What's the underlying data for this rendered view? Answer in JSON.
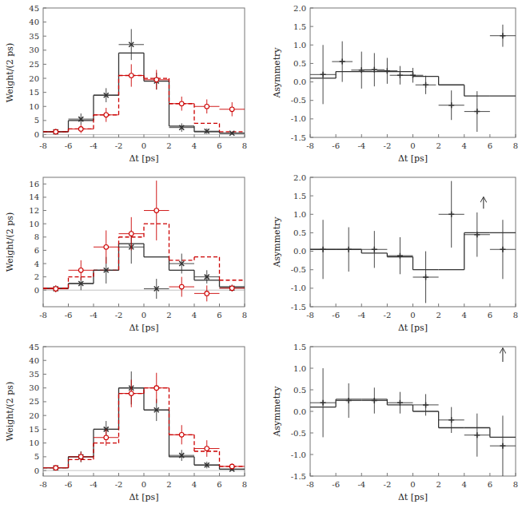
{
  "chart_data": [
    {
      "type": "step",
      "bins": [
        -8,
        -6,
        -4,
        -2,
        0,
        2,
        4,
        6,
        8
      ],
      "x_label": "Δt [ps]",
      "y_label": "Weight/(2 ps)",
      "xlim": [
        -8,
        8
      ],
      "xticks": [
        -8,
        -6,
        -4,
        -2,
        0,
        2,
        4,
        6,
        8
      ],
      "ylim": [
        -1,
        45
      ],
      "yticks": [
        0,
        5,
        10,
        15,
        20,
        25,
        30,
        35,
        40,
        45
      ],
      "annotations": [
        {
          "type": "hline",
          "y": 0
        }
      ],
      "series": [
        {
          "type": "step",
          "color": "#333333",
          "line_style": "solid",
          "values": [
            1.0,
            5.0,
            14.0,
            29.0,
            19.0,
            3.0,
            1.0,
            0.5
          ]
        },
        {
          "type": "step",
          "color": "#cc0000",
          "line_style": "dashed",
          "values": [
            1.0,
            2.0,
            7.0,
            21.0,
            20.0,
            11.0,
            4.0,
            1.0
          ]
        },
        {
          "type": "errorbar",
          "color": "#333333",
          "marker": "x",
          "x": [
            -7,
            -5,
            -3,
            -1,
            1,
            3,
            5,
            7
          ],
          "values": [
            1.0,
            5.5,
            14.0,
            32.0,
            19.0,
            2.5,
            1.2,
            0.5
          ],
          "errors": [
            1.0,
            2.0,
            2.5,
            5.5,
            3.0,
            1.5,
            1.0,
            0.5
          ],
          "x_error": 1.0
        },
        {
          "type": "errorbar",
          "color": "#cc0000",
          "marker": "o",
          "x": [
            -7,
            -5,
            -3,
            -1,
            1,
            3,
            5,
            7
          ],
          "values": [
            1.0,
            2.0,
            7.0,
            21.0,
            19.5,
            11.0,
            10.0,
            9.0
          ],
          "errors": [
            0.8,
            1.5,
            2.5,
            4.0,
            3.5,
            2.5,
            2.5,
            2.5
          ],
          "x_error": 1.0
        }
      ]
    },
    {
      "type": "step",
      "bins": [
        -8,
        -6,
        -4,
        -2,
        0,
        2,
        4,
        6,
        8
      ],
      "x_label": "Δt [ps]",
      "y_label": "Asymmetry",
      "xlim": [
        -8,
        8
      ],
      "xticks": [
        -8,
        -6,
        -4,
        -2,
        0,
        2,
        4,
        6,
        8
      ],
      "ylim": [
        -1.5,
        2.0
      ],
      "yticks": [
        {
          "value": -1.5,
          "label": "-1.5"
        },
        {
          "value": -1.0,
          "label": "-1.0"
        },
        {
          "value": -0.5,
          "label": "-0.5"
        },
        {
          "value": 0.0,
          "label": "0.0"
        },
        {
          "value": 0.5,
          "label": "0.5"
        },
        {
          "value": 1.0,
          "label": "1.0"
        },
        {
          "value": 1.5,
          "label": "1.5"
        },
        {
          "value": 2.0,
          "label": "2.0"
        }
      ],
      "series": [
        {
          "type": "step",
          "color": "#333333",
          "line_style": "solid",
          "values": [
            0.1,
            0.28,
            0.28,
            0.28,
            0.15,
            -0.08,
            -0.38,
            -0.38
          ]
        },
        {
          "type": "errorbar",
          "color": "#333333",
          "marker": "+",
          "x": [
            -7.0,
            -5.5,
            -4.0,
            -3.0,
            -2.0,
            -1.0,
            0.0,
            1.0,
            3.0,
            5.0,
            7.0
          ],
          "values": [
            0.2,
            0.55,
            0.32,
            0.33,
            0.3,
            0.18,
            0.18,
            -0.08,
            -0.63,
            -0.8,
            1.25
          ],
          "errors": [
            0.8,
            0.55,
            0.5,
            0.45,
            0.35,
            0.25,
            0.2,
            0.25,
            0.4,
            0.55,
            0.3
          ],
          "x_errors": [
            1.0,
            0.8,
            0.8,
            0.8,
            0.8,
            0.8,
            0.8,
            0.8,
            1.0,
            1.0,
            1.0
          ]
        }
      ]
    },
    {
      "type": "step",
      "bins": [
        -8,
        -6,
        -4,
        -2,
        0,
        2,
        4,
        6,
        8
      ],
      "x_label": "Δt [ps]",
      "y_label": "Weight/(2 ps)",
      "xlim": [
        -8,
        8
      ],
      "xticks": [
        -8,
        -6,
        -4,
        -2,
        0,
        2,
        4,
        6,
        8
      ],
      "ylim": [
        -2.5,
        17
      ],
      "yticks": [
        0,
        2,
        4,
        6,
        8,
        10,
        12,
        14,
        16
      ],
      "annotations": [
        {
          "type": "hline",
          "y": 0
        }
      ],
      "series": [
        {
          "type": "step",
          "color": "#333333",
          "line_style": "solid",
          "values": [
            0.3,
            1.0,
            3.0,
            7.0,
            5.0,
            3.0,
            1.5,
            0.5
          ]
        },
        {
          "type": "step",
          "color": "#cc0000",
          "line_style": "dashed",
          "values": [
            0.3,
            2.0,
            3.0,
            8.0,
            10.0,
            4.5,
            5.0,
            1.5
          ]
        },
        {
          "type": "errorbar",
          "color": "#333333",
          "marker": "x",
          "x": [
            -7,
            -5,
            -3,
            -1,
            1,
            3,
            5,
            7
          ],
          "values": [
            0.2,
            1.0,
            3.0,
            6.5,
            0.2,
            4.0,
            2.0,
            0.3
          ],
          "errors": [
            0.5,
            1.0,
            2.0,
            2.5,
            1.5,
            1.5,
            1.0,
            0.5
          ],
          "x_error": 1.0
        },
        {
          "type": "errorbar",
          "color": "#cc0000",
          "marker": "o",
          "x": [
            -7,
            -5,
            -3,
            -1,
            1,
            3,
            5,
            7
          ],
          "values": [
            0.2,
            3.0,
            6.5,
            8.5,
            12.0,
            0.5,
            -0.5,
            0.3
          ],
          "errors": [
            0.5,
            1.5,
            2.5,
            2.5,
            4.5,
            1.5,
            1.2,
            0.5
          ],
          "x_error": 1.0
        }
      ]
    },
    {
      "type": "step",
      "bins": [
        -8,
        -6,
        -4,
        -2,
        0,
        2,
        4,
        6,
        8
      ],
      "x_label": "Δt [ps]",
      "y_label": "Asymmetry",
      "xlim": [
        -8,
        8
      ],
      "xticks": [
        -8,
        -6,
        -4,
        -2,
        0,
        2,
        4,
        6,
        8
      ],
      "ylim": [
        -1.5,
        2.0
      ],
      "yticks": [
        {
          "value": -1.5,
          "label": "-1.5"
        },
        {
          "value": -1.0,
          "label": "-1.0"
        },
        {
          "value": -0.5,
          "label": "-0.5"
        },
        {
          "value": 0.0,
          "label": "0.0"
        },
        {
          "value": 0.5,
          "label": "0.5"
        },
        {
          "value": 1.0,
          "label": "1.0"
        },
        {
          "value": 1.5,
          "label": "1.5"
        },
        {
          "value": 2.0,
          "label": "2.0"
        }
      ],
      "annotations": [
        {
          "type": "arrow",
          "x": 5.5,
          "y_start": 1.15,
          "y_end": 1.47
        }
      ],
      "series": [
        {
          "type": "step",
          "color": "#333333",
          "line_style": "solid",
          "values": [
            0.05,
            0.05,
            -0.05,
            -0.15,
            -0.5,
            -0.5,
            0.5,
            0.5
          ]
        },
        {
          "type": "errorbar",
          "color": "#333333",
          "marker": "+",
          "x": [
            -7.0,
            -5.0,
            -3.0,
            -1.0,
            1.0,
            3.0,
            5.0,
            7.0
          ],
          "values": [
            0.05,
            0.05,
            0.05,
            -0.12,
            -0.7,
            1.0,
            0.45,
            0.05
          ],
          "errors": [
            0.8,
            0.6,
            0.5,
            0.5,
            0.7,
            0.9,
            0.6,
            0.8
          ],
          "x_errors": [
            1.0,
            1.0,
            1.0,
            1.0,
            1.0,
            1.0,
            1.0,
            1.0
          ]
        }
      ]
    },
    {
      "type": "step",
      "bins": [
        -8,
        -6,
        -4,
        -2,
        0,
        2,
        4,
        6,
        8
      ],
      "x_label": "Δt [ps]",
      "y_label": "Weight/(2 ps)",
      "xlim": [
        -8,
        8
      ],
      "xticks": [
        -8,
        -6,
        -4,
        -2,
        0,
        2,
        4,
        6,
        8
      ],
      "ylim": [
        -2,
        45
      ],
      "yticks": [
        0,
        5,
        10,
        15,
        20,
        25,
        30,
        35,
        40,
        45
      ],
      "annotations": [
        {
          "type": "hline",
          "y": 0
        }
      ],
      "series": [
        {
          "type": "step",
          "color": "#333333",
          "line_style": "solid",
          "values": [
            1.0,
            5.0,
            15.0,
            30.0,
            22.0,
            5.0,
            2.0,
            0.5
          ]
        },
        {
          "type": "step",
          "color": "#cc0000",
          "line_style": "dashed",
          "values": [
            1.0,
            4.0,
            10.0,
            28.0,
            30.0,
            13.0,
            7.0,
            1.5
          ]
        },
        {
          "type": "errorbar",
          "color": "#333333",
          "marker": "x",
          "x": [
            -7,
            -5,
            -3,
            -1,
            1,
            3,
            5,
            7
          ],
          "values": [
            1.0,
            5.0,
            15.0,
            30.0,
            22.0,
            5.5,
            2.0,
            0.5
          ],
          "errors": [
            1.0,
            2.0,
            3.0,
            6.0,
            4.0,
            2.0,
            1.2,
            0.6
          ],
          "x_error": 1.0
        },
        {
          "type": "errorbar",
          "color": "#cc0000",
          "marker": "o",
          "x": [
            -7,
            -5,
            -3,
            -1,
            1,
            3,
            5,
            7
          ],
          "values": [
            1.0,
            5.0,
            12.0,
            28.0,
            30.0,
            13.0,
            8.0,
            1.5
          ],
          "errors": [
            0.8,
            1.8,
            3.0,
            5.0,
            5.5,
            3.5,
            3.0,
            1.0
          ],
          "x_error": 1.0
        }
      ]
    },
    {
      "type": "step",
      "bins": [
        -8,
        -6,
        -4,
        -2,
        0,
        2,
        4,
        6,
        8
      ],
      "x_label": "Δt [ps]",
      "y_label": "Asymmetry",
      "xlim": [
        -8,
        8
      ],
      "xticks": [
        -8,
        -6,
        -4,
        -2,
        0,
        2,
        4,
        6,
        8
      ],
      "ylim": [
        -1.5,
        1.5
      ],
      "yticks": [
        {
          "value": -1.5,
          "label": "-1.5"
        },
        {
          "value": -1.0,
          "label": "-1.0"
        },
        {
          "value": -0.5,
          "label": "-0.5"
        },
        {
          "value": 0.0,
          "label": "0.0"
        },
        {
          "value": 0.5,
          "label": "0.5"
        },
        {
          "value": 1.0,
          "label": "1.0"
        },
        {
          "value": 1.5,
          "label": "1.5"
        }
      ],
      "annotations": [
        {
          "type": "arrow",
          "x": 7.0,
          "y_start": 1.15,
          "y_end": 1.47
        }
      ],
      "series": [
        {
          "type": "step",
          "color": "#333333",
          "line_style": "solid",
          "values": [
            0.1,
            0.28,
            0.28,
            0.15,
            0.0,
            -0.38,
            -0.38,
            -0.6
          ]
        },
        {
          "type": "errorbar",
          "color": "#333333",
          "marker": "+",
          "x": [
            -7.0,
            -5.0,
            -3.0,
            -1.0,
            1.0,
            3.0,
            5.0,
            7.0
          ],
          "values": [
            0.2,
            0.25,
            0.25,
            0.2,
            0.15,
            -0.2,
            -0.55,
            -0.8
          ],
          "errors": [
            0.8,
            0.4,
            0.3,
            0.25,
            0.25,
            0.3,
            0.5,
            0.7
          ],
          "x_errors": [
            1.0,
            1.0,
            1.0,
            1.0,
            1.0,
            1.0,
            1.0,
            1.0
          ]
        }
      ]
    }
  ]
}
